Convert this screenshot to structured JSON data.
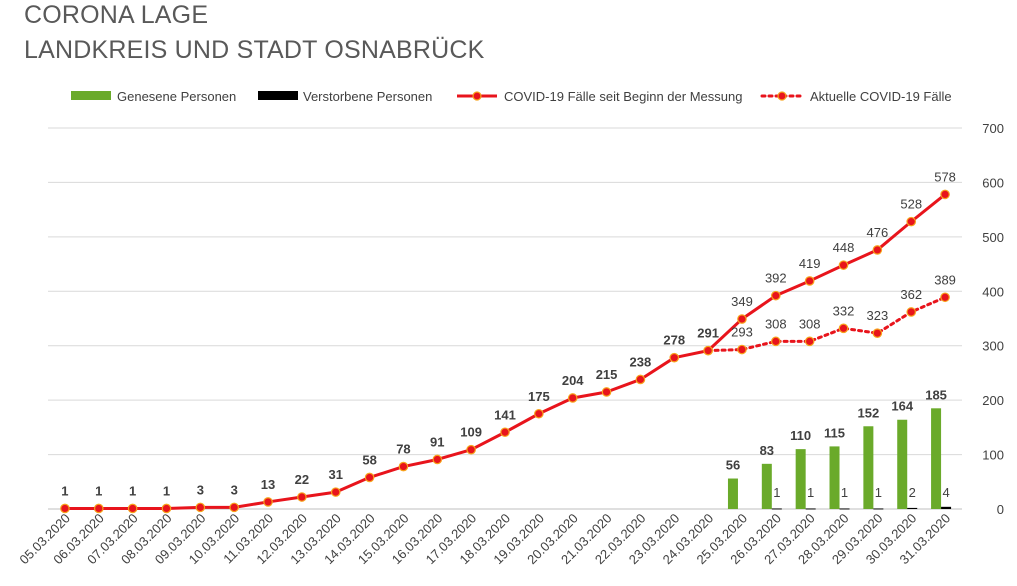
{
  "title_line1": "CORONA LAGE",
  "title_line2": "LANDKREIS UND STADT OSNABRÜCK",
  "chart_data": {
    "type": "bar+line",
    "categories": [
      "05.03.2020",
      "06.03.2020",
      "07.03.2020",
      "08.03.2020",
      "09.03.2020",
      "10.03.2020",
      "11.03.2020",
      "12.03.2020",
      "13.03.2020",
      "14.03.2020",
      "15.03.2020",
      "16.03.2020",
      "17.03.2020",
      "18.03.2020",
      "19.03.2020",
      "20.03.2020",
      "21.03.2020",
      "22.03.2020",
      "23.03.2020",
      "24.03.2020",
      "25.03.2020",
      "26.03.2020",
      "27.03.2020",
      "28.03.2020",
      "29.03.2020",
      "30.03.2020",
      "31.03.2020"
    ],
    "ylim": [
      0,
      700
    ],
    "yticks": [
      0,
      100,
      200,
      300,
      400,
      500,
      600,
      700
    ],
    "series": [
      {
        "name": "Genesene Personen",
        "type": "bar",
        "color": "#6aaa2a",
        "values": [
          null,
          null,
          null,
          null,
          null,
          null,
          null,
          null,
          null,
          null,
          null,
          null,
          null,
          null,
          null,
          null,
          null,
          null,
          null,
          null,
          56,
          83,
          110,
          115,
          152,
          164,
          185
        ]
      },
      {
        "name": "Verstorbene Personen",
        "type": "bar",
        "color": "#000000",
        "values": [
          null,
          null,
          null,
          null,
          null,
          null,
          null,
          null,
          null,
          null,
          null,
          null,
          null,
          null,
          null,
          null,
          null,
          null,
          null,
          null,
          null,
          1,
          1,
          1,
          1,
          2,
          4
        ]
      },
      {
        "name": "COVID-19 Fälle seit Beginn der Messung",
        "type": "line",
        "style": "solid",
        "color": "#e8141c",
        "values": [
          1,
          1,
          1,
          1,
          3,
          3,
          13,
          22,
          31,
          58,
          78,
          91,
          109,
          141,
          175,
          204,
          215,
          238,
          278,
          291,
          349,
          392,
          419,
          448,
          476,
          528,
          578
        ]
      },
      {
        "name": "Aktuelle COVID-19 Fälle",
        "type": "line",
        "style": "dotted",
        "color": "#e8141c",
        "values": [
          null,
          null,
          null,
          null,
          null,
          null,
          null,
          null,
          null,
          null,
          null,
          null,
          null,
          null,
          null,
          null,
          null,
          null,
          null,
          291,
          293,
          308,
          308,
          332,
          323,
          362,
          389
        ]
      }
    ],
    "legend_position": "top"
  }
}
